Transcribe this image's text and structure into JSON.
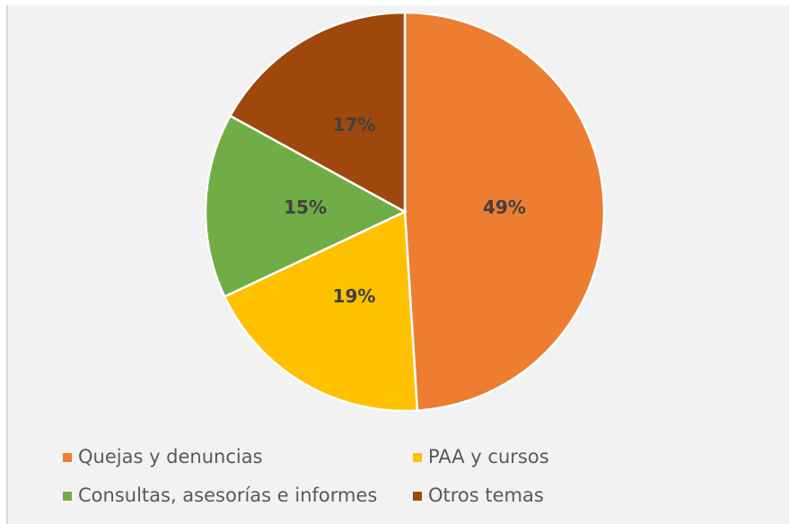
{
  "chart_data": {
    "type": "pie",
    "categories": [
      "Quejas y denuncias",
      "PAA y cursos",
      "Consultas, asesorías e informes",
      "Otros temas"
    ],
    "values": [
      49,
      19,
      15,
      17
    ],
    "value_labels": [
      "49%",
      "19%",
      "15%",
      "17%"
    ],
    "colors": [
      "#ED7D31",
      "#FFC000",
      "#70AD47",
      "#9E480E"
    ],
    "legend": "bottom"
  }
}
